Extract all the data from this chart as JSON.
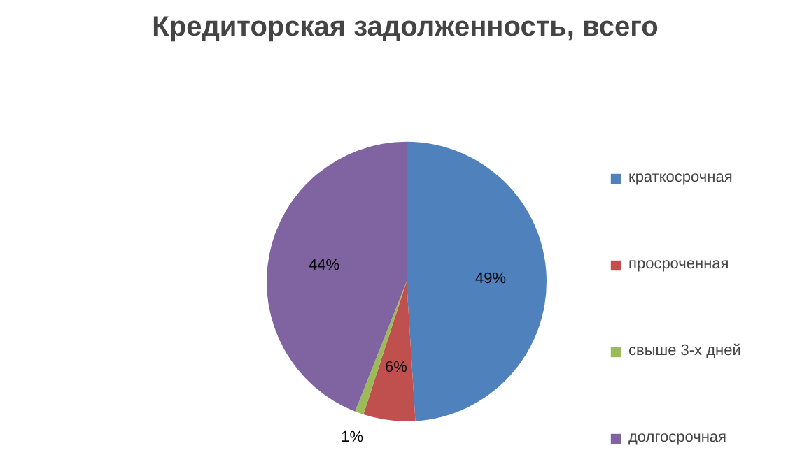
{
  "chart_data": {
    "type": "pie",
    "title": "Кредиторская задолженность, всего",
    "categories": [
      "краткосрочная",
      "просроченная",
      "свыше 3-х дней",
      "долгосрочная"
    ],
    "values": [
      49,
      6,
      1,
      44
    ],
    "colors": [
      "#4f81bd",
      "#c0504d",
      "#9bbb59",
      "#8064a2"
    ],
    "value_labels": [
      "49%",
      "6%",
      "1%",
      "44%"
    ],
    "legend": "right"
  }
}
